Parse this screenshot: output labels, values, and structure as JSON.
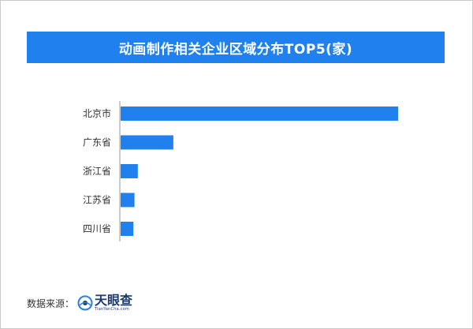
{
  "chart_data": {
    "type": "bar",
    "orientation": "horizontal",
    "title": "动画制作相关企业区域分布TOP5(家)",
    "categories": [
      "北京市",
      "广东省",
      "浙江省",
      "江苏省",
      "四川省"
    ],
    "values": [
      1000,
      190,
      62,
      50,
      46
    ],
    "xlim": [
      0,
      1000
    ],
    "grid": false,
    "bar_color": "#1f80ee"
  },
  "source": {
    "label": "数据来源：",
    "logo_name": "天眼查",
    "logo_sub": "TianYanCha.com"
  }
}
